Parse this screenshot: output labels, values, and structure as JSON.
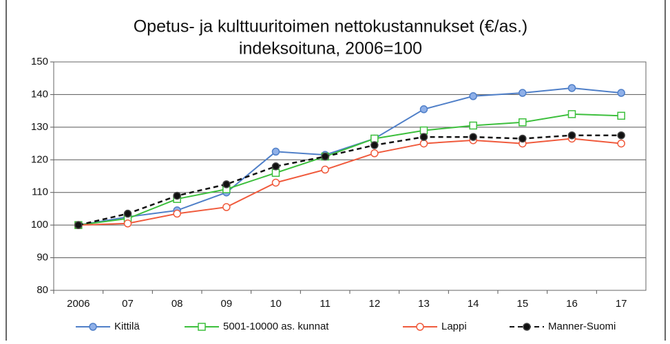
{
  "chart_data": {
    "type": "line",
    "title": "Opetus- ja kulttuuritoimen nettokustannukset (€/as.)",
    "subtitle": "indeksoituna,  2006=100",
    "categories": [
      "2006",
      "07",
      "08",
      "09",
      "10",
      "11",
      "12",
      "13",
      "14",
      "15",
      "16",
      "17"
    ],
    "series": [
      {
        "name": "Kittilä",
        "color": "#4f7fc8",
        "marker": "circle",
        "marker_fill": "#8fb0e8",
        "dash": false,
        "values": [
          100,
          102.5,
          104.5,
          110,
          122.5,
          121.5,
          126.5,
          135.5,
          139.5,
          140.5,
          142,
          140.5
        ]
      },
      {
        "name": "5001-10000 as. kunnat",
        "color": "#3cbf3c",
        "marker": "square",
        "marker_fill": "#ffffff",
        "dash": false,
        "values": [
          100,
          102,
          108,
          111,
          116,
          121,
          126.5,
          129,
          130.5,
          131.5,
          134,
          133.5
        ]
      },
      {
        "name": "Lappi",
        "color": "#f05a3c",
        "marker": "circle",
        "marker_fill": "#ffffff",
        "dash": false,
        "values": [
          100,
          100.5,
          103.5,
          105.5,
          113,
          117,
          122,
          125,
          126,
          125,
          126.5,
          125
        ]
      },
      {
        "name": "Manner-Suomi",
        "color": "#111111",
        "marker": "circle",
        "marker_fill": "#111111",
        "dash": true,
        "values": [
          100,
          103.5,
          109,
          112.5,
          118,
          121,
          124.5,
          127,
          127,
          126.5,
          127.5,
          127.5
        ]
      }
    ],
    "ylim": [
      80,
      150
    ],
    "yticks": [
      80,
      90,
      100,
      110,
      120,
      130,
      140,
      150
    ],
    "grid": true,
    "legend": "bottom"
  }
}
